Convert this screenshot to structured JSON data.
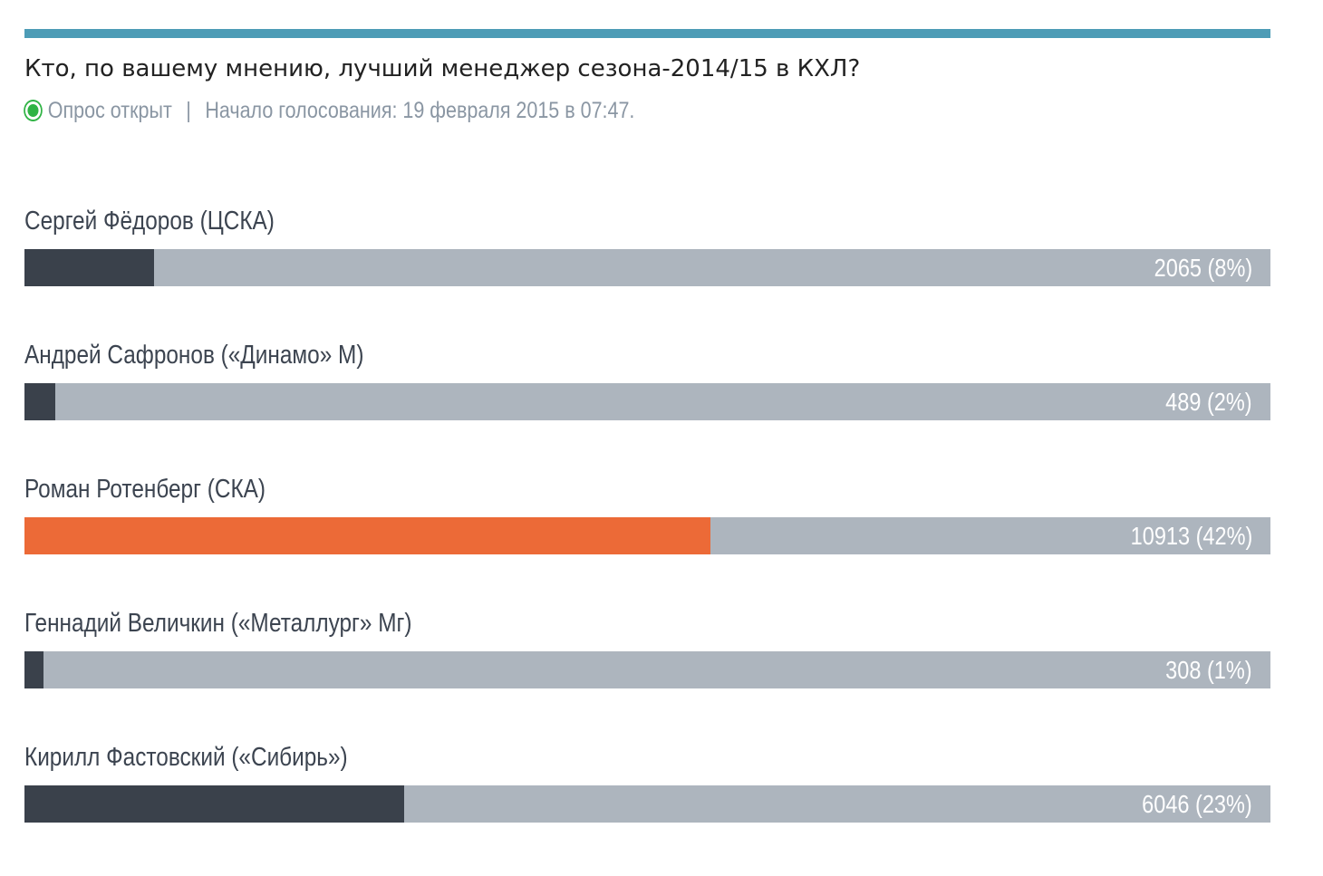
{
  "poll": {
    "question": "Кто, по вашему мнению, лучший менеджер сезона-2014/15 в КХЛ?",
    "status_text": "Опрос открыт",
    "separator": "|",
    "start_text": "Начало голосования: 19 февраля 2015 в 07:47.",
    "colors": {
      "accent_rule": "#4d9cb6",
      "status_open": "#2fb344",
      "bar_track": "#adb5be",
      "bar_fill": "#3a414b",
      "bar_leader": "#ec6a37"
    },
    "options": [
      {
        "label": "Сергей Фёдоров (ЦСКА)",
        "votes": 2065,
        "percent": 8,
        "value_text": "2065 (8%)",
        "leader": false
      },
      {
        "label": "Андрей Сафронов («Динамо» М)",
        "votes": 489,
        "percent": 2,
        "value_text": "489 (2%)",
        "leader": false
      },
      {
        "label": "Роман Ротенберг (СКА)",
        "votes": 10913,
        "percent": 42,
        "value_text": "10913 (42%)",
        "leader": true
      },
      {
        "label": "Геннадий Величкин («Металлург» Мг)",
        "votes": 308,
        "percent": 1,
        "value_text": "308 (1%)",
        "leader": false
      },
      {
        "label": "Кирилл Фастовский («Сибирь»)",
        "votes": 6046,
        "percent": 23,
        "value_text": "6046 (23%)",
        "leader": false
      }
    ]
  }
}
